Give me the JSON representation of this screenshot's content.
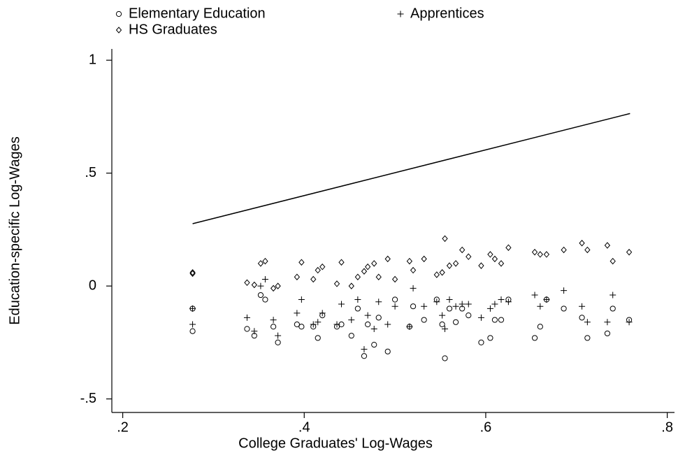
{
  "chart_data": {
    "type": "scatter",
    "x_label": "College Graduates' Log-Wages",
    "y_label": "Education-specific Log-Wages",
    "xlim": [
      0.188,
      0.808
    ],
    "ylim": [
      -0.56,
      1.05
    ],
    "xticks": [
      {
        "value": 0.2,
        "label": ".2"
      },
      {
        "value": 0.4,
        "label": ".4"
      },
      {
        "value": 0.6,
        "label": ".6"
      },
      {
        "value": 0.8,
        "label": ".8"
      }
    ],
    "yticks": [
      {
        "value": -0.5,
        "label": "-.5"
      },
      0,
      {
        "value": 0.5,
        "label": ".5"
      },
      1
    ],
    "x": [
      0.277,
      0.277,
      0.337,
      0.345,
      0.352,
      0.357,
      0.366,
      0.371,
      0.392,
      0.397,
      0.41,
      0.415,
      0.42,
      0.436,
      0.441,
      0.452,
      0.459,
      0.466,
      0.47,
      0.477,
      0.482,
      0.492,
      0.5,
      0.516,
      0.52,
      0.532,
      0.546,
      0.552,
      0.555,
      0.56,
      0.567,
      0.574,
      0.581,
      0.595,
      0.605,
      0.61,
      0.617,
      0.625,
      0.654,
      0.66,
      0.667,
      0.686,
      0.706,
      0.712,
      0.734,
      0.74,
      0.758
    ],
    "series": [
      {
        "name": "Elementary Education",
        "marker": "circle",
        "color": "#000000",
        "values": [
          -0.2,
          -0.1,
          -0.19,
          -0.22,
          -0.04,
          -0.06,
          -0.18,
          -0.25,
          -0.17,
          -0.18,
          -0.18,
          -0.23,
          -0.13,
          -0.18,
          -0.17,
          -0.22,
          -0.1,
          -0.31,
          -0.17,
          -0.26,
          -0.14,
          -0.29,
          -0.06,
          -0.18,
          -0.09,
          -0.15,
          -0.06,
          -0.17,
          -0.32,
          -0.1,
          -0.16,
          -0.1,
          -0.13,
          -0.25,
          -0.23,
          -0.15,
          -0.15,
          -0.06,
          -0.23,
          -0.18,
          -0.06,
          -0.1,
          -0.14,
          -0.23,
          -0.21,
          -0.1,
          -0.15
        ]
      },
      {
        "name": "Apprentices",
        "marker": "plus",
        "color": "#000000",
        "values": [
          -0.17,
          -0.1,
          -0.14,
          -0.2,
          0.0,
          0.03,
          -0.15,
          -0.22,
          -0.12,
          -0.06,
          -0.17,
          -0.16,
          -0.12,
          -0.17,
          -0.08,
          -0.15,
          -0.06,
          -0.28,
          -0.13,
          -0.19,
          -0.07,
          -0.17,
          -0.09,
          -0.18,
          -0.01,
          -0.09,
          -0.07,
          -0.13,
          -0.19,
          -0.06,
          -0.09,
          -0.08,
          -0.08,
          -0.14,
          -0.1,
          -0.08,
          -0.06,
          -0.07,
          -0.04,
          -0.09,
          -0.06,
          -0.02,
          -0.09,
          -0.16,
          -0.16,
          -0.04,
          -0.16
        ]
      },
      {
        "name": "HS Graduates",
        "marker": "diamond",
        "color": "#000000",
        "values": [
          0.06,
          0.055,
          0.015,
          0.005,
          0.1,
          0.11,
          -0.01,
          0.0,
          0.04,
          0.105,
          0.03,
          0.07,
          0.085,
          0.01,
          0.105,
          0.0,
          0.04,
          0.065,
          0.085,
          0.1,
          0.04,
          0.12,
          0.03,
          0.11,
          0.07,
          0.12,
          0.05,
          0.06,
          0.21,
          0.09,
          0.1,
          0.16,
          0.13,
          0.09,
          0.14,
          0.12,
          0.1,
          0.17,
          0.15,
          0.14,
          0.14,
          0.16,
          0.19,
          0.16,
          0.18,
          0.11,
          0.15
        ]
      },
      {
        "marker": "line",
        "color": "#000000",
        "x": [
          0.277,
          0.759
        ],
        "values": [
          0.276,
          0.764
        ]
      }
    ]
  }
}
